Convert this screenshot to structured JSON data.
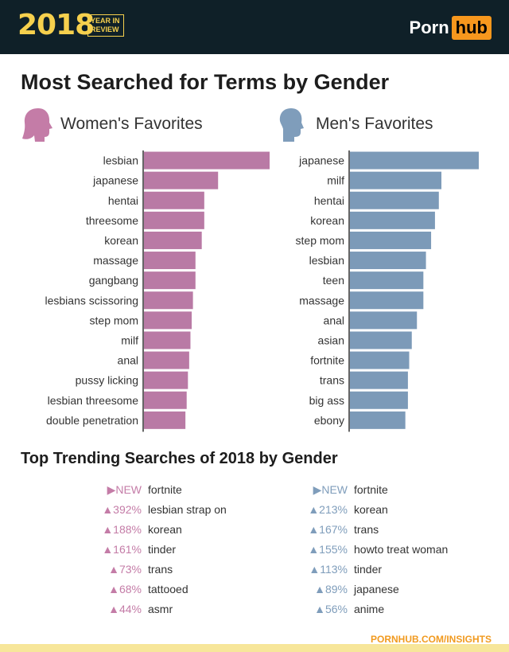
{
  "header": {
    "year": "2018",
    "year_in_review_line1": "YEAR IN",
    "year_in_review_line2": "REVIEW",
    "logo_porn": "Porn",
    "logo_hub": "hub"
  },
  "title": "Most Searched for Terms by Gender",
  "women_title": "Women's Favorites",
  "men_title": "Men's Favorites",
  "colors": {
    "women": "#b97aa5",
    "men": "#7c9ab8",
    "women_light": "#c47ca7",
    "men_light": "#7f9dbb",
    "header_bg": "#0f2028",
    "year_accent": "#f6d04d",
    "hub_orange": "#f7971d"
  },
  "chart_data": [
    {
      "type": "bar",
      "orientation": "horizontal",
      "title": "Women's Favorites",
      "categories": [
        "lesbian",
        "japanese",
        "hentai",
        "threesome",
        "korean",
        "massage",
        "gangbang",
        "lesbians scissoring",
        "step mom",
        "milf",
        "anal",
        "pussy licking",
        "lesbian threesome",
        "double penetration"
      ],
      "values": [
        100,
        59,
        48,
        48,
        46,
        41,
        41,
        39,
        38,
        37,
        36,
        35,
        34,
        33
      ],
      "xlim": [
        0,
        100
      ],
      "grid": false
    },
    {
      "type": "bar",
      "orientation": "horizontal",
      "title": "Men's Favorites",
      "categories": [
        "japanese",
        "milf",
        "hentai",
        "korean",
        "step mom",
        "lesbian",
        "teen",
        "massage",
        "anal",
        "asian",
        "fortnite",
        "trans",
        "big ass",
        "ebony"
      ],
      "values": [
        100,
        71,
        69,
        66,
        63,
        59,
        57,
        57,
        52,
        48,
        46,
        45,
        45,
        43
      ],
      "xlim": [
        0,
        100
      ],
      "grid": false
    }
  ],
  "trend_title": "Top Trending Searches of 2018 by Gender",
  "women_trending": [
    {
      "change": "▶NEW",
      "term": "fortnite"
    },
    {
      "change": "▲392%",
      "term": "lesbian strap on"
    },
    {
      "change": "▲188%",
      "term": "korean"
    },
    {
      "change": "▲161%",
      "term": "tinder"
    },
    {
      "change": "▲73%",
      "term": "trans"
    },
    {
      "change": "▲68%",
      "term": "tattooed"
    },
    {
      "change": "▲44%",
      "term": "asmr"
    }
  ],
  "men_trending": [
    {
      "change": "▶NEW",
      "term": "fortnite"
    },
    {
      "change": "▲213%",
      "term": "korean"
    },
    {
      "change": "▲167%",
      "term": "trans"
    },
    {
      "change": "▲155%",
      "term": "howto treat woman"
    },
    {
      "change": "▲113%",
      "term": "tinder"
    },
    {
      "change": "▲89%",
      "term": "japanese"
    },
    {
      "change": "▲56%",
      "term": "anime"
    }
  ],
  "footer_url": "PORNHUB.COM/INSIGHTS"
}
